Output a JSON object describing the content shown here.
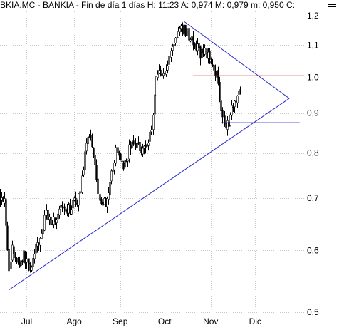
{
  "chart_data": {
    "type": "candlestick",
    "title": "BKIA.MC - BANKIA - Fin de día 1 días H: 11:23 A: 0,974 M: 0,979 m: 0,950 C:",
    "months": [
      {
        "label": "Jul",
        "day": 18
      },
      {
        "label": "Ago",
        "day": 50
      },
      {
        "label": "Sep",
        "day": 81
      },
      {
        "label": "Oct",
        "day": 111
      },
      {
        "label": "Nov",
        "day": 142
      },
      {
        "label": "Dic",
        "day": 172
      }
    ],
    "y_ticks": [
      {
        "value": 1.2,
        "label": "1,2"
      },
      {
        "value": 1.1,
        "label": "1,1"
      },
      {
        "value": 1.0,
        "label": "1,0"
      },
      {
        "value": 0.9,
        "label": "0,9"
      },
      {
        "value": 0.8,
        "label": "0,8"
      },
      {
        "value": 0.7,
        "label": "0,7"
      },
      {
        "value": 0.6,
        "label": "0,6"
      },
      {
        "value": 0.5,
        "label": "0,5"
      }
    ],
    "y_scale": "log",
    "ylim": [
      0.5,
      1.2
    ],
    "xlim": [
      0,
      205
    ],
    "grid": true,
    "close_anchors": [
      [
        0,
        0.705
      ],
      [
        3,
        0.7
      ],
      [
        6,
        0.56
      ],
      [
        8,
        0.605
      ],
      [
        12,
        0.575
      ],
      [
        16,
        0.59
      ],
      [
        20,
        0.57
      ],
      [
        24,
        0.6
      ],
      [
        28,
        0.63
      ],
      [
        31,
        0.67
      ],
      [
        34,
        0.655
      ],
      [
        38,
        0.66
      ],
      [
        41,
        0.68
      ],
      [
        44,
        0.665
      ],
      [
        47,
        0.68
      ],
      [
        50,
        0.69
      ],
      [
        53,
        0.7
      ],
      [
        56,
        0.77
      ],
      [
        58,
        0.81
      ],
      [
        60,
        0.85
      ],
      [
        62,
        0.82
      ],
      [
        64,
        0.78
      ],
      [
        66,
        0.71
      ],
      [
        70,
        0.69
      ],
      [
        73,
        0.7
      ],
      [
        76,
        0.77
      ],
      [
        78,
        0.8
      ],
      [
        81,
        0.79
      ],
      [
        84,
        0.77
      ],
      [
        87,
        0.81
      ],
      [
        90,
        0.82
      ],
      [
        93,
        0.82
      ],
      [
        96,
        0.81
      ],
      [
        99,
        0.82
      ],
      [
        101,
        0.84
      ],
      [
        103,
        0.9
      ],
      [
        105,
        1.0
      ],
      [
        107,
        1.02
      ],
      [
        109,
        1.02
      ],
      [
        111,
        1.01
      ],
      [
        113,
        1.03
      ],
      [
        115,
        1.09
      ],
      [
        117,
        1.11
      ],
      [
        120,
        1.14
      ],
      [
        122,
        1.15
      ],
      [
        124,
        1.155
      ],
      [
        126,
        1.14
      ],
      [
        128,
        1.13
      ],
      [
        130,
        1.1
      ],
      [
        132,
        1.09
      ],
      [
        134,
        1.08
      ],
      [
        136,
        1.07
      ],
      [
        138,
        1.09
      ],
      [
        140,
        1.06
      ],
      [
        142,
        1.06
      ],
      [
        144,
        1.03
      ],
      [
        146,
        1.01
      ],
      [
        148,
        0.95
      ],
      [
        150,
        0.89
      ],
      [
        152,
        0.87
      ],
      [
        154,
        0.88
      ],
      [
        156,
        0.91
      ],
      [
        158,
        0.94
      ],
      [
        160,
        0.95
      ],
      [
        162,
        0.965
      ]
    ],
    "lines": [
      {
        "name": "support-trendline",
        "color": "#2a2ad0",
        "from": [
          6,
          0.534
        ],
        "to": [
          195,
          0.94
        ]
      },
      {
        "name": "resistance-trendline",
        "color": "#2a2ad0",
        "from": [
          124,
          1.18
        ],
        "to": [
          195,
          0.94
        ]
      },
      {
        "name": "lower-horizontal-level",
        "color": "#2a2ad0",
        "from": [
          149,
          0.875
        ],
        "to": [
          202,
          0.875
        ]
      },
      {
        "name": "resistance-horizontal-level",
        "color": "#cc2222",
        "from": [
          130,
          1.005
        ],
        "to": [
          205,
          1.005
        ]
      }
    ]
  }
}
